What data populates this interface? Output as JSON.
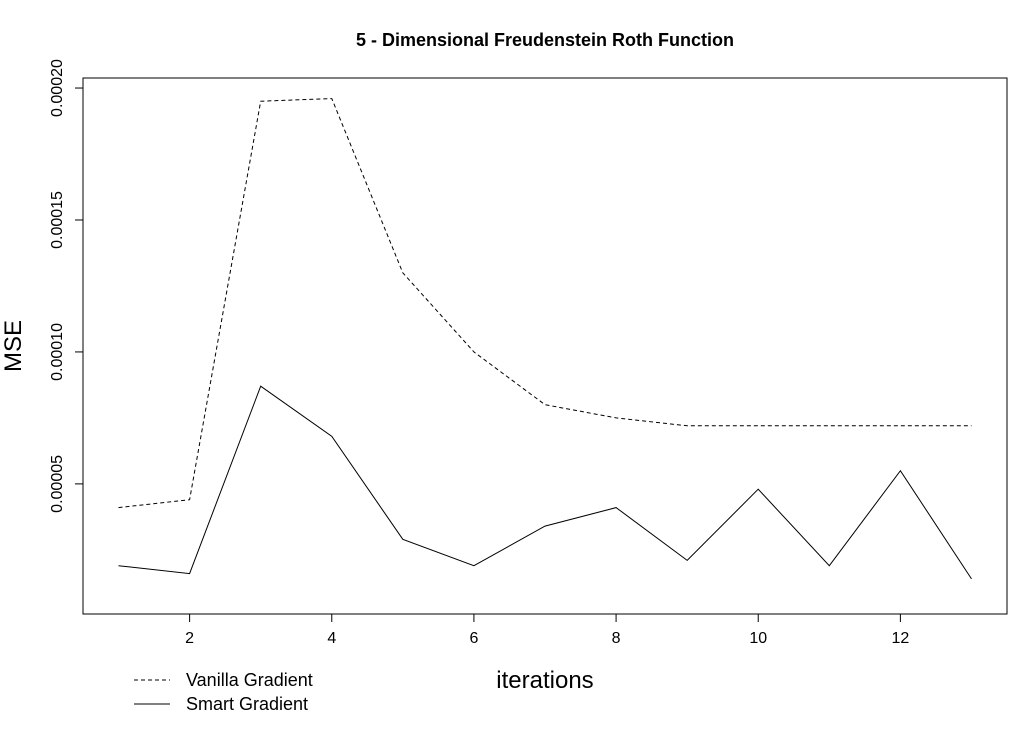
{
  "chart_data": {
    "type": "line",
    "title": "5 - Dimensional Freudenstein Roth Function",
    "xlabel": "iterations",
    "ylabel": "MSE",
    "x": [
      1,
      2,
      3,
      4,
      5,
      6,
      7,
      8,
      9,
      10,
      11,
      12,
      13
    ],
    "xlim": [
      0.5,
      13.5
    ],
    "ylim": [
      7e-07,
      0.0002038
    ],
    "xticks": [
      2,
      4,
      6,
      8,
      10,
      12
    ],
    "xtick_labels": [
      "2",
      "4",
      "6",
      "8",
      "10",
      "12"
    ],
    "yticks": [
      5e-05,
      0.0001,
      0.00015,
      0.0002
    ],
    "ytick_labels": [
      "0.00005",
      "0.00010",
      "0.00015",
      "0.00020"
    ],
    "grid": false,
    "legend_position": "bottom-left (outside plot)",
    "series": [
      {
        "name": "Vanilla Gradient",
        "line_style": "dashed",
        "color": "#000000",
        "values": [
          4.1e-05,
          4.4e-05,
          0.000195,
          0.000196,
          0.00013,
          0.0001,
          8e-05,
          7.5e-05,
          7.2e-05,
          7.2e-05,
          7.2e-05,
          7.2e-05,
          7.2e-05
        ]
      },
      {
        "name": "Smart Gradient",
        "line_style": "solid",
        "color": "#000000",
        "values": [
          1.9e-05,
          1.6e-05,
          8.7e-05,
          6.8e-05,
          2.9e-05,
          1.9e-05,
          3.4e-05,
          4.1e-05,
          2.1e-05,
          4.8e-05,
          1.9e-05,
          5.5e-05,
          1.4e-05
        ]
      }
    ]
  }
}
